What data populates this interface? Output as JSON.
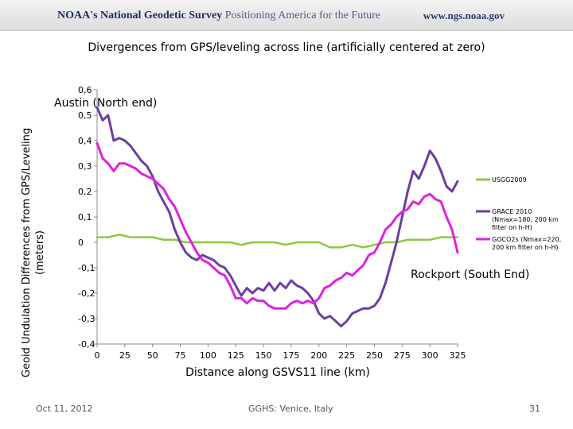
{
  "header": {
    "org_name": "NOAA's National Geodetic Survey",
    "tagline": "Positioning America for the Future",
    "url": "www.ngs.noaa.gov"
  },
  "footer": {
    "date": "Oct 11, 2012",
    "event": "GGHS: Venice, Italy",
    "page_number": "31"
  },
  "chart_data": {
    "type": "line",
    "title": "Divergences from GPS/leveling across line (artificially centered at zero)",
    "xlabel": "Distance along GSVS11 line (km)",
    "ylabel_line1": "Geoid Undulation Differences from GPS/Leveling",
    "ylabel_line2": "(meters)",
    "xlim": [
      0,
      325
    ],
    "ylim": [
      -0.4,
      0.6
    ],
    "x_ticks": [
      "0",
      "25",
      "50",
      "75",
      "100",
      "125",
      "150",
      "175",
      "200",
      "225",
      "250",
      "275",
      "300",
      "325"
    ],
    "y_ticks": [
      "0,6",
      "0,5",
      "0,4",
      "0,3",
      "0,2",
      "0,1",
      "0",
      "-0,1",
      "-0,2",
      "-0,3",
      "-0,4"
    ],
    "annotations": {
      "north": "Austin (North end)",
      "south": "Rockport (South End)"
    },
    "series": [
      {
        "name": "USGG2009",
        "color": "#8ec63f",
        "x": [
          0,
          10,
          20,
          30,
          40,
          50,
          60,
          70,
          80,
          90,
          100,
          110,
          120,
          130,
          140,
          150,
          160,
          170,
          180,
          190,
          200,
          210,
          220,
          230,
          240,
          250,
          260,
          270,
          280,
          290,
          300,
          310,
          320,
          325
        ],
        "y": [
          0.02,
          0.02,
          0.03,
          0.02,
          0.02,
          0.02,
          0.01,
          0.01,
          0.0,
          0.0,
          0.0,
          0.0,
          0.0,
          -0.01,
          0.0,
          0.0,
          0.0,
          -0.01,
          0.0,
          0.0,
          0.0,
          -0.02,
          -0.02,
          -0.01,
          -0.02,
          -0.01,
          0.0,
          0.0,
          0.01,
          0.01,
          0.01,
          0.02,
          0.02,
          0.02
        ]
      },
      {
        "name": "GRACE 2010 (Nmax=180, 200 km filter on h-H)",
        "color": "#6b3fa0",
        "x": [
          0,
          5,
          10,
          15,
          20,
          25,
          30,
          35,
          40,
          45,
          50,
          55,
          60,
          65,
          70,
          75,
          80,
          85,
          90,
          95,
          100,
          105,
          110,
          115,
          120,
          125,
          130,
          135,
          140,
          145,
          150,
          155,
          160,
          165,
          170,
          175,
          180,
          185,
          190,
          195,
          200,
          205,
          210,
          215,
          220,
          225,
          230,
          235,
          240,
          245,
          250,
          255,
          260,
          265,
          270,
          275,
          280,
          285,
          290,
          295,
          300,
          305,
          310,
          315,
          320,
          325
        ],
        "y": [
          0.53,
          0.48,
          0.5,
          0.4,
          0.41,
          0.4,
          0.38,
          0.35,
          0.32,
          0.3,
          0.26,
          0.2,
          0.16,
          0.12,
          0.05,
          0.0,
          -0.04,
          -0.06,
          -0.07,
          -0.05,
          -0.06,
          -0.07,
          -0.09,
          -0.1,
          -0.13,
          -0.17,
          -0.21,
          -0.18,
          -0.2,
          -0.18,
          -0.19,
          -0.16,
          -0.19,
          -0.16,
          -0.18,
          -0.15,
          -0.17,
          -0.18,
          -0.2,
          -0.23,
          -0.28,
          -0.3,
          -0.29,
          -0.31,
          -0.33,
          -0.31,
          -0.28,
          -0.27,
          -0.26,
          -0.26,
          -0.25,
          -0.22,
          -0.16,
          -0.08,
          0.0,
          0.1,
          0.2,
          0.28,
          0.25,
          0.3,
          0.36,
          0.33,
          0.28,
          0.22,
          0.2,
          0.24
        ]
      },
      {
        "name": "GOCO2s (Nmax=220, 200 km filter on h-H)",
        "color": "#e020e0",
        "x": [
          0,
          5,
          10,
          15,
          20,
          25,
          30,
          35,
          40,
          45,
          50,
          55,
          60,
          65,
          70,
          75,
          80,
          85,
          90,
          95,
          100,
          105,
          110,
          115,
          120,
          125,
          130,
          135,
          140,
          145,
          150,
          155,
          160,
          165,
          170,
          175,
          180,
          185,
          190,
          195,
          200,
          205,
          210,
          215,
          220,
          225,
          230,
          235,
          240,
          245,
          250,
          255,
          260,
          265,
          270,
          275,
          280,
          285,
          290,
          295,
          300,
          305,
          310,
          315,
          320,
          325
        ],
        "y": [
          0.39,
          0.33,
          0.31,
          0.28,
          0.31,
          0.31,
          0.3,
          0.29,
          0.27,
          0.26,
          0.25,
          0.23,
          0.21,
          0.17,
          0.14,
          0.09,
          0.04,
          0.0,
          -0.04,
          -0.07,
          -0.08,
          -0.1,
          -0.12,
          -0.13,
          -0.17,
          -0.22,
          -0.22,
          -0.24,
          -0.22,
          -0.23,
          -0.23,
          -0.25,
          -0.26,
          -0.26,
          -0.26,
          -0.24,
          -0.23,
          -0.24,
          -0.23,
          -0.24,
          -0.22,
          -0.18,
          -0.17,
          -0.15,
          -0.14,
          -0.12,
          -0.13,
          -0.11,
          -0.09,
          -0.05,
          -0.04,
          0.0,
          0.05,
          0.07,
          0.1,
          0.12,
          0.13,
          0.16,
          0.15,
          0.18,
          0.19,
          0.17,
          0.16,
          0.1,
          0.05,
          -0.04
        ]
      }
    ],
    "legend": [
      {
        "label": "USGG2009",
        "color": "#8ec63f"
      },
      {
        "label": "GRACE 2010 (Nmax=180, 200 km filter on h-H)",
        "color": "#6b3fa0"
      },
      {
        "label": "GOCO2s (Nmax=220, 200 km filter on h-H)",
        "color": "#e020e0"
      }
    ],
    "legend_position": "right"
  }
}
